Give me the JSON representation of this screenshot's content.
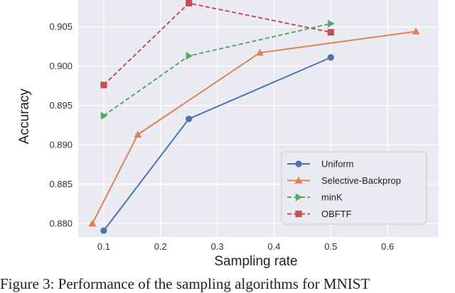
{
  "chart_data": {
    "type": "line",
    "title": "",
    "xlabel": "Sampling rate",
    "ylabel": "Accuracy",
    "xlim": [
      0.055,
      0.69
    ],
    "ylim": [
      0.8783,
      0.9084
    ],
    "xticks": [
      0.1,
      0.2,
      0.3,
      0.4,
      0.5,
      0.6
    ],
    "xtick_labels": [
      "0.1",
      "0.2",
      "0.3",
      "0.4",
      "0.5",
      "0.6"
    ],
    "yticks": [
      0.88,
      0.885,
      0.89,
      0.895,
      0.9,
      0.905
    ],
    "ytick_labels": [
      "0.880",
      "0.885",
      "0.890",
      "0.895",
      "0.900",
      "0.905"
    ],
    "grid": true,
    "legend_position": "lower-right",
    "series": [
      {
        "name": "Uniform",
        "color": "#4c72b0",
        "marker": "circle",
        "linestyle": "solid",
        "x": [
          0.1,
          0.25,
          0.5
        ],
        "y": [
          0.8791,
          0.8933,
          0.9011
        ]
      },
      {
        "name": "Selective-Backprop",
        "color": "#dd8452",
        "marker": "triangle-up",
        "linestyle": "solid",
        "x": [
          0.08,
          0.16,
          0.375,
          0.65
        ],
        "y": [
          0.88,
          0.8913,
          0.9017,
          0.9044
        ]
      },
      {
        "name": "minK",
        "color": "#55a868",
        "marker": "triangle-right",
        "linestyle": "dashed",
        "x": [
          0.1,
          0.25,
          0.5
        ],
        "y": [
          0.8937,
          0.9013,
          0.9054
        ]
      },
      {
        "name": "OBFTF",
        "color": "#c44e52",
        "marker": "square",
        "linestyle": "dashed",
        "x": [
          0.1,
          0.25,
          0.5
        ],
        "y": [
          0.8976,
          0.908,
          0.9043
        ]
      }
    ]
  },
  "caption": "Figure 3: Performance of the sampling algorithms for MNIST"
}
